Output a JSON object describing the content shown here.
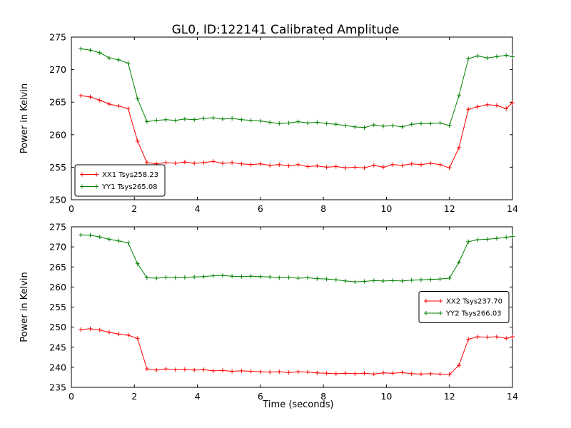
{
  "figure": {
    "title": "GL0, ID:122141 Calibrated Amplitude",
    "xlabel": "Time (seconds)",
    "ylabel": "Power in Kelvin"
  },
  "chart_data": [
    {
      "type": "line",
      "title": "",
      "ylabel": "Power in Kelvin",
      "xlim": [
        0,
        14
      ],
      "ylim": [
        250,
        275
      ],
      "xticks": [
        0,
        2,
        4,
        6,
        8,
        10,
        12,
        14
      ],
      "yticks": [
        250,
        255,
        260,
        265,
        270,
        275
      ],
      "legend": "lower-left",
      "x": [
        0.3,
        0.6,
        0.9,
        1.2,
        1.5,
        1.8,
        2.1,
        2.4,
        2.7,
        3.0,
        3.3,
        3.6,
        3.9,
        4.2,
        4.5,
        4.8,
        5.1,
        5.4,
        5.7,
        6.0,
        6.3,
        6.6,
        6.9,
        7.2,
        7.5,
        7.8,
        8.1,
        8.4,
        8.7,
        9.0,
        9.3,
        9.6,
        9.9,
        10.2,
        10.5,
        10.8,
        11.1,
        11.4,
        11.7,
        12.0,
        12.3,
        12.6,
        12.9,
        13.2,
        13.5,
        13.8,
        14.0
      ],
      "series": [
        {
          "name": "XX1 Tsys258.23",
          "color": "#ff0000",
          "marker": "plus",
          "values": [
            266.0,
            265.8,
            265.3,
            264.7,
            264.4,
            264.0,
            259.0,
            255.7,
            255.5,
            255.7,
            255.6,
            255.8,
            255.6,
            255.7,
            255.9,
            255.6,
            255.7,
            255.5,
            255.4,
            255.5,
            255.3,
            255.4,
            255.2,
            255.4,
            255.1,
            255.2,
            255.0,
            255.1,
            254.9,
            255.0,
            254.9,
            255.3,
            255.0,
            255.4,
            255.3,
            255.5,
            255.4,
            255.6,
            255.4,
            254.9,
            258.0,
            263.9,
            264.3,
            264.6,
            264.5,
            264.0,
            264.9
          ]
        },
        {
          "name": "YY1 Tsys265.08",
          "color": "#008000",
          "marker": "plus",
          "values": [
            273.2,
            273.0,
            272.6,
            271.8,
            271.5,
            271.0,
            265.5,
            262.0,
            262.2,
            262.3,
            262.2,
            262.4,
            262.3,
            262.5,
            262.6,
            262.4,
            262.5,
            262.3,
            262.2,
            262.1,
            261.9,
            261.7,
            261.8,
            262.0,
            261.8,
            261.9,
            261.7,
            261.6,
            261.4,
            261.2,
            261.1,
            261.5,
            261.3,
            261.4,
            261.2,
            261.6,
            261.7,
            261.7,
            261.8,
            261.4,
            266.0,
            271.7,
            272.1,
            271.8,
            272.0,
            272.2,
            272.0
          ]
        }
      ]
    },
    {
      "type": "line",
      "title": "",
      "xlabel": "Time (seconds)",
      "ylabel": "Power in Kelvin",
      "xlim": [
        0,
        14
      ],
      "ylim": [
        235,
        275
      ],
      "xticks": [
        0,
        2,
        4,
        6,
        8,
        10,
        12,
        14
      ],
      "yticks": [
        235,
        240,
        245,
        250,
        255,
        260,
        265,
        270,
        275
      ],
      "legend": "center-right",
      "x": [
        0.3,
        0.6,
        0.9,
        1.2,
        1.5,
        1.8,
        2.1,
        2.4,
        2.7,
        3.0,
        3.3,
        3.6,
        3.9,
        4.2,
        4.5,
        4.8,
        5.1,
        5.4,
        5.7,
        6.0,
        6.3,
        6.6,
        6.9,
        7.2,
        7.5,
        7.8,
        8.1,
        8.4,
        8.7,
        9.0,
        9.3,
        9.6,
        9.9,
        10.2,
        10.5,
        10.8,
        11.1,
        11.4,
        11.7,
        12.0,
        12.3,
        12.6,
        12.9,
        13.2,
        13.5,
        13.8,
        14.0
      ],
      "series": [
        {
          "name": "XX2 Tsys237.70",
          "color": "#ff0000",
          "marker": "plus",
          "values": [
            249.4,
            249.6,
            249.3,
            248.7,
            248.3,
            248.0,
            247.2,
            239.6,
            239.3,
            239.6,
            239.4,
            239.5,
            239.3,
            239.4,
            239.1,
            239.2,
            239.0,
            239.1,
            239.0,
            238.9,
            238.8,
            238.9,
            238.7,
            238.9,
            238.8,
            238.6,
            238.5,
            238.4,
            238.5,
            238.4,
            238.5,
            238.3,
            238.6,
            238.5,
            238.7,
            238.4,
            238.3,
            238.4,
            238.3,
            238.2,
            240.5,
            247.0,
            247.6,
            247.5,
            247.6,
            247.2,
            247.6
          ]
        },
        {
          "name": "YY2 Tsys266.03",
          "color": "#008000",
          "marker": "plus",
          "values": [
            273.0,
            272.9,
            272.5,
            271.9,
            271.5,
            271.0,
            265.8,
            262.3,
            262.2,
            262.4,
            262.3,
            262.4,
            262.5,
            262.6,
            262.8,
            262.9,
            262.7,
            262.6,
            262.7,
            262.6,
            262.5,
            262.3,
            262.4,
            262.2,
            262.3,
            262.1,
            262.0,
            261.8,
            261.5,
            261.3,
            261.4,
            261.6,
            261.5,
            261.6,
            261.5,
            261.7,
            261.8,
            261.9,
            262.0,
            262.2,
            266.2,
            271.3,
            271.8,
            271.9,
            272.1,
            272.4,
            272.6
          ]
        }
      ]
    }
  ]
}
